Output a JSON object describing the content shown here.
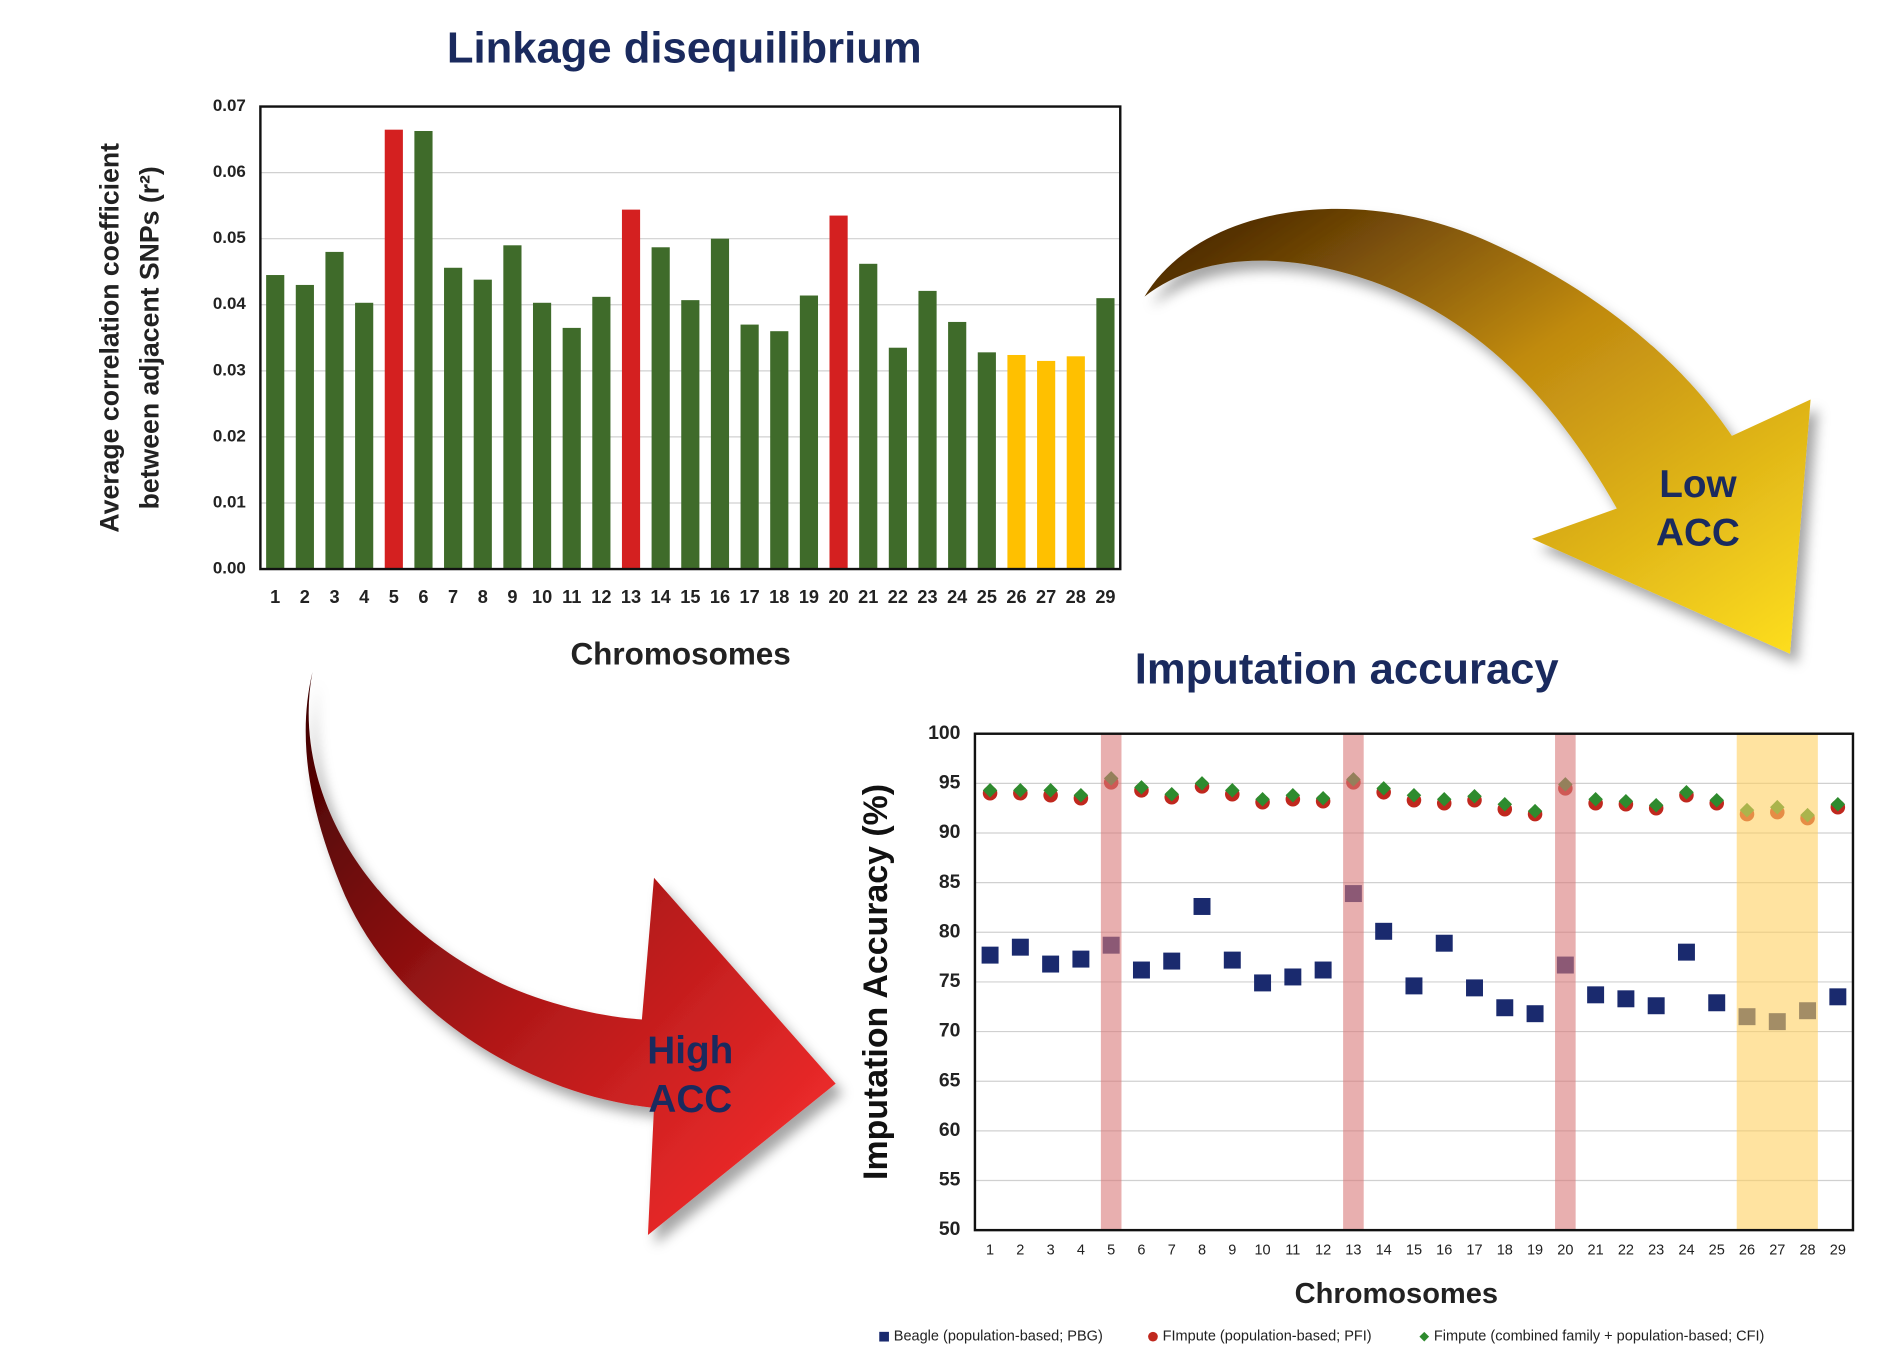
{
  "chart_data": [
    {
      "type": "bar",
      "title": "Linkage disequilibrium",
      "x_label": "Chromosomes",
      "y_label": [
        "Average correlation coefficient",
        "between adjacent SNPs (r²)"
      ],
      "categories": [
        "1",
        "2",
        "3",
        "4",
        "5",
        "6",
        "7",
        "8",
        "9",
        "10",
        "11",
        "12",
        "13",
        "14",
        "15",
        "16",
        "17",
        "18",
        "19",
        "20",
        "21",
        "22",
        "23",
        "24",
        "25",
        "26",
        "27",
        "28",
        "29"
      ],
      "values": [
        0.0445,
        0.043,
        0.048,
        0.0403,
        0.0665,
        0.0663,
        0.0456,
        0.0438,
        0.049,
        0.0403,
        0.0365,
        0.0412,
        0.0544,
        0.0487,
        0.0407,
        0.05,
        0.037,
        0.036,
        0.0414,
        0.0535,
        0.0462,
        0.0335,
        0.0421,
        0.0374,
        0.0328,
        0.0324,
        0.0315,
        0.0322,
        0.041
      ],
      "colors": [
        "#3f6b2a",
        "#3f6b2a",
        "#3f6b2a",
        "#3f6b2a",
        "#d42020",
        "#3f6b2a",
        "#3f6b2a",
        "#3f6b2a",
        "#3f6b2a",
        "#3f6b2a",
        "#3f6b2a",
        "#3f6b2a",
        "#d42020",
        "#3f6b2a",
        "#3f6b2a",
        "#3f6b2a",
        "#3f6b2a",
        "#3f6b2a",
        "#3f6b2a",
        "#d42020",
        "#3f6b2a",
        "#3f6b2a",
        "#3f6b2a",
        "#3f6b2a",
        "#3f6b2a",
        "#ffc000",
        "#ffc000",
        "#ffc000",
        "#3f6b2a"
      ],
      "ylim": [
        0,
        0.07
      ],
      "yticks": [
        {
          "value": 0,
          "label": "0.00"
        },
        0.01,
        0.02,
        0.03,
        0.04,
        0.05,
        0.06,
        0.07
      ],
      "grid": true
    },
    {
      "type": "scatter",
      "title": "Imputation accuracy",
      "x_label": "Chromosomes",
      "y_label": "Imputation Accuracy (%)",
      "categories": [
        "1",
        "2",
        "3",
        "4",
        "5",
        "6",
        "7",
        "8",
        "9",
        "10",
        "11",
        "12",
        "13",
        "14",
        "15",
        "16",
        "17",
        "18",
        "19",
        "20",
        "21",
        "22",
        "23",
        "24",
        "25",
        "26",
        "27",
        "28",
        "29"
      ],
      "series": [
        {
          "name": "Beagle (population-based; PBG)",
          "color": "#1a2a6e",
          "marker": "square",
          "values": [
            77.7,
            78.5,
            76.8,
            77.3,
            78.7,
            76.2,
            77.1,
            82.6,
            77.2,
            74.9,
            75.5,
            76.2,
            83.9,
            80.1,
            74.6,
            78.9,
            74.4,
            72.4,
            71.8,
            76.7,
            73.7,
            73.3,
            72.6,
            78.0,
            72.9,
            71.5,
            71.0,
            72.1,
            73.5
          ]
        },
        {
          "name": "FImpute (population-based; PFI)",
          "color": "#c0281e",
          "marker": "circle",
          "values": [
            94.0,
            94.0,
            93.8,
            93.5,
            95.1,
            94.3,
            93.6,
            94.7,
            93.9,
            93.1,
            93.4,
            93.2,
            95.1,
            94.1,
            93.3,
            93.0,
            93.3,
            92.4,
            91.9,
            94.5,
            93.0,
            92.9,
            92.5,
            93.8,
            93.0,
            91.9,
            92.1,
            91.5,
            92.6
          ]
        },
        {
          "name": "Fimpute (combined family + population-based; CFI)",
          "color": "#2e8b2e",
          "marker": "diamond",
          "values": [
            94.3,
            94.3,
            94.3,
            93.8,
            95.5,
            94.6,
            93.9,
            95.0,
            94.3,
            93.4,
            93.8,
            93.5,
            95.4,
            94.5,
            93.8,
            93.4,
            93.7,
            92.9,
            92.2,
            94.9,
            93.4,
            93.2,
            92.8,
            94.1,
            93.3,
            92.3,
            92.6,
            91.8,
            92.9
          ]
        }
      ],
      "bands": [
        {
          "start": 5,
          "end": 5,
          "color": "#d97a7a"
        },
        {
          "start": 13,
          "end": 13,
          "color": "#d97a7a"
        },
        {
          "start": 20,
          "end": 20,
          "color": "#d97a7a"
        },
        {
          "start": 26,
          "end": 28,
          "color": "#ffd060"
        }
      ],
      "ylim": [
        50,
        100
      ],
      "yticks": [
        50,
        55,
        60,
        65,
        70,
        75,
        80,
        85,
        90,
        95,
        100
      ],
      "grid": true
    }
  ],
  "annotations": [
    [
      "Low",
      "ACC"
    ],
    [
      "High",
      "ACC"
    ]
  ]
}
